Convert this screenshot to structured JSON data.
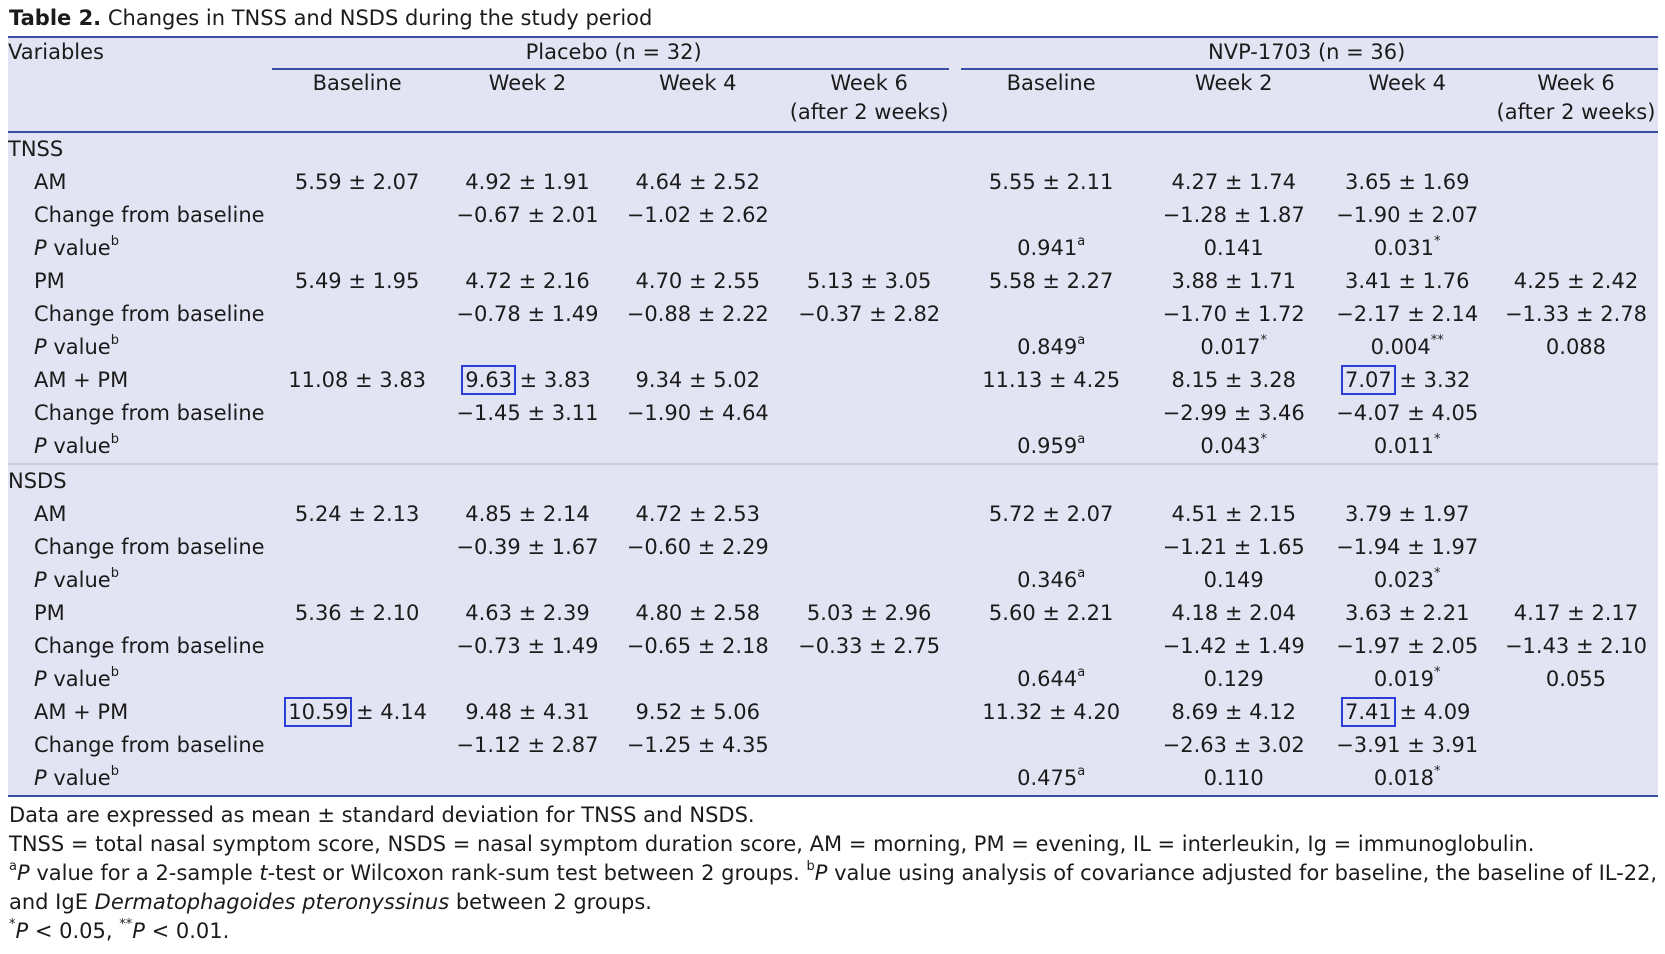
{
  "title": {
    "bold": "Table 2.",
    "text": "Changes in TNSS and NSDS during the study period"
  },
  "header": {
    "variables": "Variables",
    "group_placebo": "Placebo (n = 32)",
    "group_nvp": "NVP-1703 (n = 36)",
    "col_baseline": "Baseline",
    "col_week2": "Week 2",
    "col_week4": "Week 4",
    "col_week6_line1": "Week 6",
    "col_week6_line2": "(after 2 weeks)"
  },
  "sections": [
    {
      "name": "TNSS",
      "rows": [
        {
          "label": "AM",
          "p_italic": false,
          "cells": [
            "5.59 ± 2.07",
            "4.92 ± 1.91",
            "4.64 ± 2.52",
            "",
            "5.55 ± 2.11",
            "4.27 ± 1.74",
            "3.65 ± 1.69",
            ""
          ]
        },
        {
          "label": "Change from baseline",
          "p_italic": false,
          "cells": [
            "",
            "−0.67 ± 2.01",
            "−1.02 ± 2.62",
            "",
            "",
            "−1.28 ± 1.87",
            "−1.90 ± 2.07",
            ""
          ]
        },
        {
          "label": "P value",
          "label_sup": "b",
          "p_italic": true,
          "cells": [
            "",
            "",
            "",
            "",
            "0.941",
            "0.141",
            "0.031",
            ""
          ],
          "cell_sups": [
            "",
            "",
            "",
            "",
            "a",
            "",
            "*",
            ""
          ]
        },
        {
          "label": "PM",
          "p_italic": false,
          "cells": [
            "5.49 ± 1.95",
            "4.72 ± 2.16",
            "4.70 ± 2.55",
            "5.13 ± 3.05",
            "5.58 ± 2.27",
            "3.88 ± 1.71",
            "3.41 ± 1.76",
            "4.25 ± 2.42"
          ]
        },
        {
          "label": "Change from baseline",
          "p_italic": false,
          "cells": [
            "",
            "−0.78 ± 1.49",
            "−0.88 ± 2.22",
            "−0.37 ± 2.82",
            "",
            "−1.70 ± 1.72",
            "−2.17 ± 2.14",
            "−1.33 ± 2.78"
          ]
        },
        {
          "label": "P value",
          "label_sup": "b",
          "p_italic": true,
          "cells": [
            "",
            "",
            "",
            "",
            "0.849",
            "0.017",
            "0.004",
            "0.088"
          ],
          "cell_sups": [
            "",
            "",
            "",
            "",
            "a",
            "*",
            "**",
            ""
          ]
        },
        {
          "label": "AM + PM",
          "p_italic": false,
          "cells": [
            "11.08 ± 3.83",
            "9.63 ± 3.83",
            "9.34 ± 5.02",
            "",
            "11.13 ± 4.25",
            "8.15 ± 3.28",
            "7.07 ± 3.32",
            ""
          ],
          "boxed": [
            1,
            6
          ]
        },
        {
          "label": "Change from baseline",
          "p_italic": false,
          "cells": [
            "",
            "−1.45 ± 3.11",
            "−1.90 ± 4.64",
            "",
            "",
            "−2.99 ± 3.46",
            "−4.07 ± 4.05",
            ""
          ]
        },
        {
          "label": "P value",
          "label_sup": "b",
          "p_italic": true,
          "cells": [
            "",
            "",
            "",
            "",
            "0.959",
            "0.043",
            "0.011",
            ""
          ],
          "cell_sups": [
            "",
            "",
            "",
            "",
            "a",
            "*",
            "*",
            ""
          ]
        }
      ]
    },
    {
      "name": "NSDS",
      "rows": [
        {
          "label": "AM",
          "p_italic": false,
          "cells": [
            "5.24 ± 2.13",
            "4.85 ± 2.14",
            "4.72 ± 2.53",
            "",
            "5.72 ± 2.07",
            "4.51 ± 2.15",
            "3.79 ± 1.97",
            ""
          ]
        },
        {
          "label": "Change from baseline",
          "p_italic": false,
          "cells": [
            "",
            "−0.39 ± 1.67",
            "−0.60 ± 2.29",
            "",
            "",
            "−1.21 ± 1.65",
            "−1.94 ± 1.97",
            ""
          ]
        },
        {
          "label": "P value",
          "label_sup": "b",
          "p_italic": true,
          "cells": [
            "",
            "",
            "",
            "",
            "0.346",
            "0.149",
            "0.023",
            ""
          ],
          "cell_sups": [
            "",
            "",
            "",
            "",
            "a",
            "",
            "*",
            ""
          ]
        },
        {
          "label": "PM",
          "p_italic": false,
          "cells": [
            "5.36 ± 2.10",
            "4.63 ± 2.39",
            "4.80 ± 2.58",
            "5.03 ± 2.96",
            "5.60 ± 2.21",
            "4.18 ± 2.04",
            "3.63 ± 2.21",
            "4.17 ± 2.17"
          ]
        },
        {
          "label": "Change from baseline",
          "p_italic": false,
          "cells": [
            "",
            "−0.73 ± 1.49",
            "−0.65 ± 2.18",
            "−0.33 ± 2.75",
            "",
            "−1.42 ± 1.49",
            "−1.97 ± 2.05",
            "−1.43 ± 2.10"
          ]
        },
        {
          "label": "P value",
          "label_sup": "b",
          "p_italic": true,
          "cells": [
            "",
            "",
            "",
            "",
            "0.644",
            "0.129",
            "0.019",
            "0.055"
          ],
          "cell_sups": [
            "",
            "",
            "",
            "",
            "a",
            "",
            "*",
            ""
          ]
        },
        {
          "label": "AM + PM",
          "p_italic": false,
          "cells": [
            "10.59 ± 4.14",
            "9.48 ± 4.31",
            "9.52 ± 5.06",
            "",
            "11.32 ± 4.20",
            "8.69 ± 4.12",
            "7.41 ± 4.09",
            ""
          ],
          "boxed": [
            0,
            6
          ]
        },
        {
          "label": "Change from baseline",
          "p_italic": false,
          "cells": [
            "",
            "−1.12 ± 2.87",
            "−1.25 ± 4.35",
            "",
            "",
            "−2.63 ± 3.02",
            "−3.91 ± 3.91",
            ""
          ]
        },
        {
          "label": "P value",
          "label_sup": "b",
          "p_italic": true,
          "cells": [
            "",
            "",
            "",
            "",
            "0.475",
            "0.110",
            "0.018",
            ""
          ],
          "cell_sups": [
            "",
            "",
            "",
            "",
            "a",
            "",
            "*",
            ""
          ]
        }
      ]
    }
  ],
  "notes": {
    "line1": "Data are expressed as mean ± standard deviation for TNSS and NSDS.",
    "line2": "TNSS = total nasal symptom score, NSDS = nasal symptom duration score, AM = morning, PM = evening, IL = interleukin, Ig = immunoglobulin.",
    "line3_a_sup": "a",
    "line3_a_text": " value for a 2-sample ",
    "line3_t": "t",
    "line3_a_rest": "-test or Wilcoxon rank-sum test between 2 groups. ",
    "line3_b_sup": "b",
    "line3_b_text": " value using analysis of covariance adjusted for baseline, the baseline of IL-22, and IgE ",
    "line3_species": "Dermatophagoides pteronyssinus",
    "line3_end": " between 2 groups.",
    "p_letter": "P",
    "line4_star1": "*",
    "line4_part1": " < 0.05, ",
    "line4_star2": "**",
    "line4_part2": " < 0.01."
  },
  "colors": {
    "table_bg": "#e3e4f3",
    "rule": "#3a4da4",
    "highlight_box": "#2b3fd6"
  }
}
